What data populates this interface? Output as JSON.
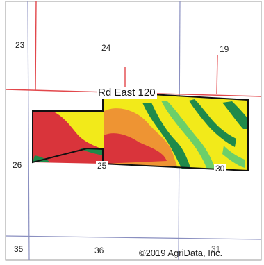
{
  "map": {
    "road_label": "Rd East 120",
    "copyright": "©2019 AgriData, Inc.",
    "section_labels": {
      "s23": "23",
      "s24": "24",
      "s19": "19",
      "s26": "26",
      "s25": "25",
      "s30": "30",
      "s35": "35",
      "s36": "36",
      "s31": "31"
    },
    "colors": {
      "red": "#d9343b",
      "orange": "#ee9433",
      "yellow": "#f2ea1a",
      "green_dark": "#1f8a4a",
      "green_light": "#6ccf6a",
      "road_line": "#e2474b",
      "section_line": "#8a8fc0"
    }
  }
}
